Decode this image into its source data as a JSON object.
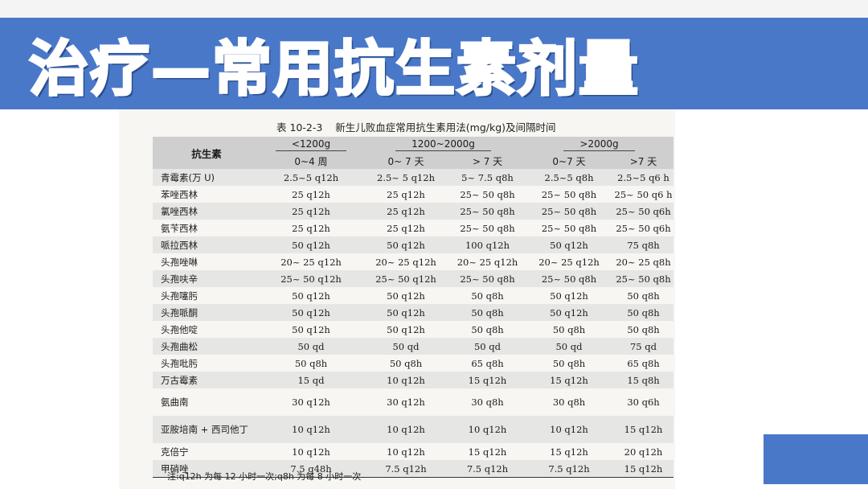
{
  "banner": {
    "title": "治疗—常用抗生素剂量"
  },
  "table": {
    "caption_number": "表 10-2-3",
    "caption_title": "新生儿败血症常用抗生素用法(mg/kg)及间隔时间",
    "header": {
      "drug": "抗生素",
      "groups": [
        "<1200g",
        "1200~2000g",
        ">2000g"
      ],
      "subs": [
        "0~4 周",
        "0~ 7 天",
        "> 7 天",
        "0~7 天",
        ">7 天"
      ]
    },
    "rows": [
      {
        "name": "青霉素(万 U)",
        "values": [
          "2.5~5 q12h",
          "2.5~ 5 q12h",
          "5~ 7.5 q8h",
          "2.5~5 q8h",
          "2.5~5 q6 h"
        ]
      },
      {
        "name": "苯唑西林",
        "values": [
          "25 q12h",
          "25 q12h",
          "25~ 50 q8h",
          "25~ 50 q8h",
          "25~ 50 q6 h"
        ]
      },
      {
        "name": "氯唑西林",
        "values": [
          "25 q12h",
          "25 q12h",
          "25~ 50 q8h",
          "25~ 50 q8h",
          "25~ 50 q6h"
        ]
      },
      {
        "name": "氨苄西林",
        "values": [
          "25 q12h",
          "25 q12h",
          "25~ 50 q8h",
          "25~ 50 q8h",
          "25~ 50 q6h"
        ]
      },
      {
        "name": "哌拉西林",
        "values": [
          "50 q12h",
          "50 q12h",
          "100 q12h",
          "50 q12h",
          "75 q8h"
        ]
      },
      {
        "name": "头孢唑啉",
        "values": [
          "20~ 25 q12h",
          "20~ 25 q12h",
          "20~ 25 q12h",
          "20~ 25 q12h",
          "20~ 25 q8h"
        ]
      },
      {
        "name": "头孢呋辛",
        "values": [
          "25~ 50 q12h",
          "25~ 50 q12h",
          "25~ 50 q8h",
          "25~ 50 q8h",
          "25~ 50 q8h"
        ]
      },
      {
        "name": "头孢噻肟",
        "values": [
          "50 q12h",
          "50 q12h",
          "50 q8h",
          "50 q12h",
          "50 q8h"
        ]
      },
      {
        "name": "头孢哌酮",
        "values": [
          "50 q12h",
          "50 q12h",
          "50 q8h",
          "50 q12h",
          "50 q8h"
        ]
      },
      {
        "name": "头孢他啶",
        "values": [
          "50 q12h",
          "50 q12h",
          "50 q8h",
          "50 q8h",
          "50 q8h"
        ]
      },
      {
        "name": "头孢曲松",
        "values": [
          "50 qd",
          "50 qd",
          "50 qd",
          "50 qd",
          "75 qd"
        ]
      },
      {
        "name": "头孢吡肟",
        "values": [
          "50 q8h",
          "50 q8h",
          "65 q8h",
          "50 q8h",
          "65 q8h"
        ]
      },
      {
        "name": "万古霉素",
        "values": [
          "15 qd",
          "10 q12h",
          "15 q12h",
          "15 q12h",
          "15 q8h"
        ]
      },
      {
        "name": "氨曲南",
        "values": [
          "30 q12h",
          "30 q12h",
          "30 q8h",
          "30 q8h",
          "30 q6h"
        ]
      },
      {
        "name": "亚胺培南 + 西司他丁",
        "values": [
          "10 q12h",
          "10 q12h",
          "10 q12h",
          "10 q12h",
          "15 q12h"
        ]
      },
      {
        "name": "克倍宁",
        "values": [
          "10 q12h",
          "10 q12h",
          "15 q12h",
          "15 q12h",
          "20 q12h"
        ]
      },
      {
        "name": "甲硝唑",
        "values": [
          "7.5 q48h",
          "7.5 q12h",
          "7.5 q12h",
          "7.5 q12h",
          "15 q12h"
        ]
      }
    ],
    "note": "注:q12h 为每 12 小时一次;q8h 为每 8 小时一次"
  },
  "colors": {
    "banner": "#4a78c9",
    "header_band": "#cfcfcf"
  }
}
